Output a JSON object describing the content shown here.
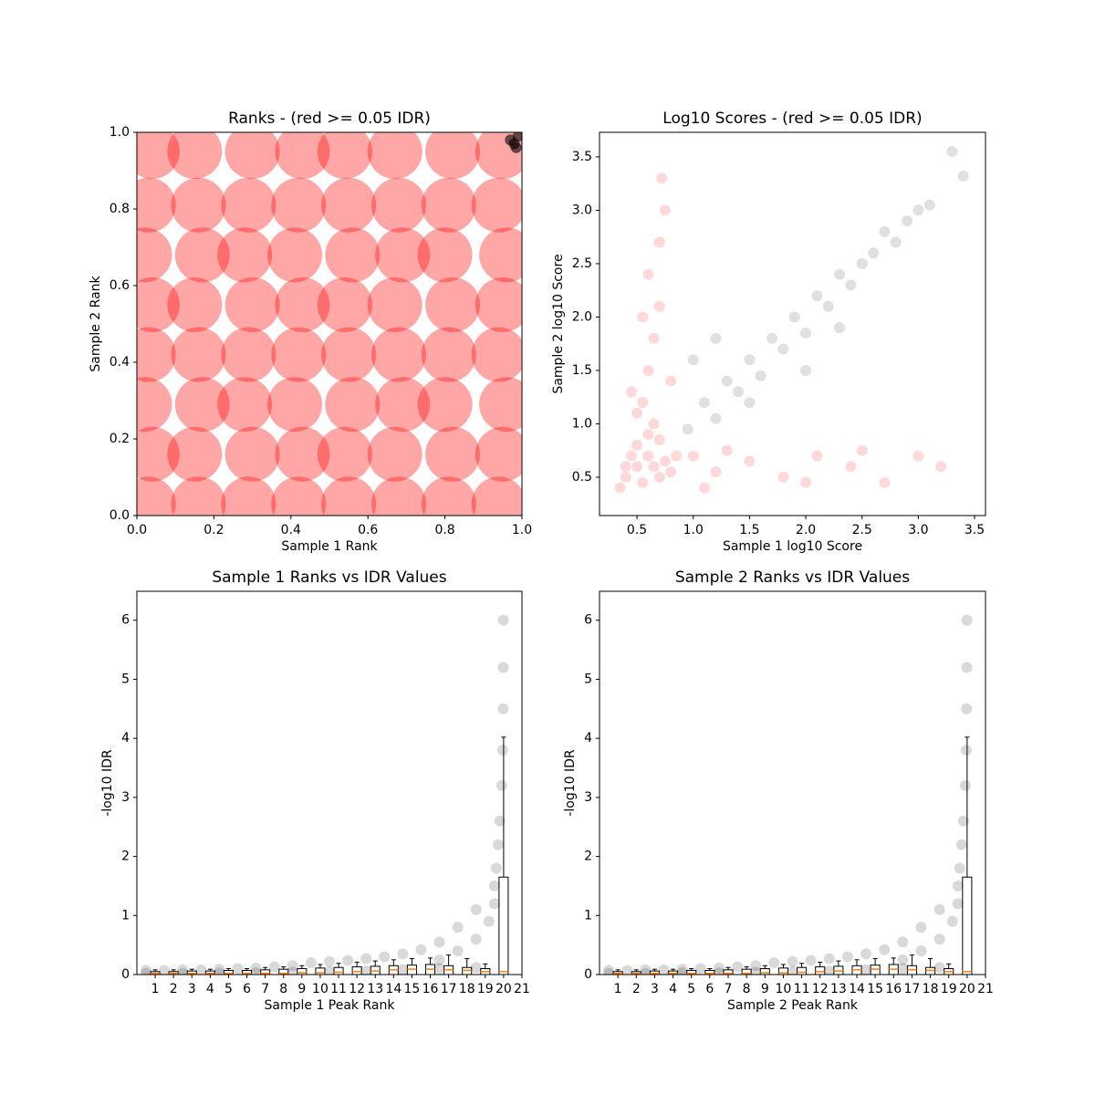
{
  "chart_data": [
    {
      "type": "scatter",
      "title": "Ranks - (red >= 0.05 IDR)",
      "xlabel": "Sample 1 Rank",
      "ylabel": "Sample 2 Rank",
      "xlim": [
        0,
        1
      ],
      "ylim": [
        0,
        1
      ],
      "xticks": [
        {
          "value": 0,
          "label": "0.0"
        },
        0.2,
        0.4,
        0.6,
        0.8,
        {
          "value": 1,
          "label": "1.0"
        }
      ],
      "yticks": [
        {
          "value": 0,
          "label": "0.0"
        },
        0.2,
        0.4,
        0.6,
        0.8,
        {
          "value": 1,
          "label": "1.0"
        }
      ],
      "series": [
        {
          "color": "#ff0000",
          "alpha": 0.35,
          "x": [
            0.03,
            0.16,
            0.29,
            0.42,
            0.55,
            0.68,
            0.81,
            0.94,
            0.04,
            0.15,
            0.3,
            0.43,
            0.54,
            0.67,
            0.82,
            0.95,
            0.02,
            0.17,
            0.28,
            0.41,
            0.56,
            0.69,
            0.8,
            0.96,
            0.03,
            0.16,
            0.29,
            0.42,
            0.55,
            0.68,
            0.81,
            0.94,
            0.04,
            0.15,
            0.3,
            0.43,
            0.54,
            0.67,
            0.82,
            0.95,
            0.02,
            0.17,
            0.28,
            0.41,
            0.56,
            0.69,
            0.8,
            0.96,
            0.03,
            0.16,
            0.29,
            0.42,
            0.55,
            0.68,
            0.81,
            0.94,
            0.04,
            0.15,
            0.3,
            0.43,
            0.54,
            0.67,
            0.82,
            0.95
          ],
          "y": [
            0.03,
            0.03,
            0.03,
            0.03,
            0.03,
            0.03,
            0.03,
            0.03,
            0.16,
            0.16,
            0.16,
            0.16,
            0.16,
            0.16,
            0.16,
            0.16,
            0.29,
            0.29,
            0.29,
            0.29,
            0.29,
            0.29,
            0.29,
            0.29,
            0.42,
            0.42,
            0.42,
            0.42,
            0.42,
            0.42,
            0.42,
            0.42,
            0.55,
            0.55,
            0.55,
            0.55,
            0.55,
            0.55,
            0.55,
            0.55,
            0.68,
            0.68,
            0.68,
            0.68,
            0.68,
            0.68,
            0.68,
            0.68,
            0.81,
            0.81,
            0.81,
            0.81,
            0.81,
            0.81,
            0.81,
            0.81,
            0.95,
            0.95,
            0.95,
            0.95,
            0.95,
            0.95,
            0.95,
            0.95
          ]
        },
        {
          "color": "#000000",
          "alpha": 0.6,
          "x": [
            0.97,
            0.98,
            0.99,
            0.985
          ],
          "y": [
            0.98,
            0.97,
            0.99,
            0.96
          ]
        }
      ]
    },
    {
      "type": "scatter",
      "title": "Log10 Scores - (red >= 0.05 IDR)",
      "xlabel": "Sample 1 log10 Score",
      "ylabel": "Sample 2 log10 Score",
      "xlim": [
        0.167,
        3.597
      ],
      "ylim": [
        0.141,
        3.73
      ],
      "xticks": [
        0.5,
        {
          "value": 1,
          "label": "1.0"
        },
        1.5,
        {
          "value": 2,
          "label": "2.0"
        },
        2.5,
        {
          "value": 3,
          "label": "3.0"
        },
        3.5
      ],
      "yticks": [
        0.5,
        {
          "value": 1,
          "label": "1.0"
        },
        1.5,
        {
          "value": 2,
          "label": "2.0"
        },
        2.5,
        {
          "value": 3,
          "label": "3.0"
        },
        3.5
      ],
      "series": [
        {
          "color": "#ff0000",
          "alpha": 0.15,
          "x": [
            0.4,
            0.5,
            0.6,
            0.7,
            0.55,
            0.65,
            0.45,
            0.75,
            0.35,
            0.8,
            0.6,
            0.5,
            0.7,
            0.85,
            0.4,
            0.55,
            0.6,
            0.65,
            0.7,
            0.6,
            0.7,
            0.75,
            0.72,
            0.55,
            0.65,
            0.5,
            0.45,
            0.8,
            1.2,
            1.5,
            1.8,
            2.1,
            2.4,
            2.7,
            3.0,
            3.2,
            2.0,
            1.0,
            1.1,
            1.3,
            2.5
          ],
          "y": [
            0.5,
            0.6,
            0.7,
            0.5,
            0.45,
            0.6,
            0.7,
            0.65,
            0.4,
            0.55,
            0.9,
            0.8,
            0.85,
            0.7,
            0.6,
            1.2,
            1.5,
            1.8,
            2.1,
            2.4,
            2.7,
            3.0,
            3.3,
            2.0,
            1.0,
            1.1,
            1.3,
            1.4,
            0.55,
            0.65,
            0.5,
            0.7,
            0.6,
            0.45,
            0.7,
            0.6,
            0.45,
            0.7,
            0.4,
            0.75,
            0.75
          ]
        },
        {
          "color": "#000000",
          "alpha": 0.12,
          "x": [
            0.95,
            1.1,
            1.2,
            1.3,
            1.4,
            1.5,
            1.6,
            1.7,
            1.8,
            1.9,
            2.0,
            2.1,
            2.2,
            2.3,
            2.4,
            2.5,
            2.6,
            2.7,
            2.8,
            2.9,
            3.0,
            3.1,
            3.3,
            3.4,
            1.0,
            2.0,
            1.5,
            2.3,
            1.2
          ],
          "y": [
            0.95,
            1.2,
            1.05,
            1.4,
            1.3,
            1.6,
            1.45,
            1.8,
            1.7,
            2.0,
            1.85,
            2.2,
            2.1,
            2.4,
            2.3,
            2.5,
            2.6,
            2.8,
            2.7,
            2.9,
            3.0,
            3.05,
            3.55,
            3.32,
            1.6,
            1.5,
            1.2,
            1.9,
            1.8
          ]
        }
      ]
    },
    {
      "type": "boxplot",
      "title": "Sample 1 Ranks vs IDR Values",
      "xlabel": "Sample 1 Peak Rank",
      "ylabel": "-log10 IDR",
      "xlim": [
        0,
        21
      ],
      "ylim": [
        0,
        6.49
      ],
      "xticks": [
        1,
        2,
        3,
        4,
        5,
        6,
        7,
        8,
        9,
        10,
        11,
        12,
        13,
        14,
        15,
        16,
        17,
        18,
        19,
        20,
        21
      ],
      "yticks": [
        0,
        1,
        2,
        3,
        4,
        5,
        6
      ],
      "series": [
        {
          "color": "#000000",
          "alpha": 0.15,
          "x": [
            0.5,
            1.5,
            2.5,
            3.5,
            4.5,
            5.5,
            6.5,
            7.5,
            8.5,
            9.5,
            10.5,
            11.5,
            12.5,
            13.5,
            14.5,
            15.5,
            16.5,
            17.5,
            18.5,
            19.5,
            0.5,
            2.5,
            4.5,
            6.5,
            8.5,
            10.5,
            12.5,
            14.5,
            16.5,
            18.5,
            19.6,
            19.7,
            19.8,
            19.9,
            19.95,
            19.97,
            19.98,
            19.99,
            17.5,
            18.5,
            19.2,
            19.5,
            16.5
          ],
          "y": [
            0.07,
            0.07,
            0.08,
            0.08,
            0.09,
            0.1,
            0.11,
            0.13,
            0.15,
            0.2,
            0.22,
            0.24,
            0.27,
            0.3,
            0.35,
            0.42,
            0.55,
            0.8,
            1.1,
            1.5,
            0.02,
            0.02,
            0.03,
            0.03,
            0.04,
            0.05,
            0.06,
            0.08,
            0.1,
            0.12,
            1.8,
            2.2,
            2.6,
            3.2,
            3.8,
            4.5,
            5.2,
            6.0,
            0.4,
            0.6,
            0.9,
            1.2,
            0.25
          ]
        }
      ],
      "box": {
        "color": "#000000",
        "median_color": "#ff7f0e",
        "positions": [
          1,
          2,
          3,
          4,
          5,
          6,
          7,
          8,
          9,
          10,
          11,
          12,
          13,
          14,
          15,
          16,
          17,
          18,
          19,
          20
        ],
        "low": [
          0,
          0,
          0,
          0,
          0,
          0,
          0,
          0,
          0,
          0,
          0,
          0,
          0,
          0,
          0,
          0,
          0,
          0,
          0,
          0
        ],
        "q1": [
          0,
          0,
          0,
          0,
          0,
          0,
          0,
          0,
          0,
          0,
          0,
          0,
          0,
          0,
          0,
          0,
          0,
          0,
          0,
          0
        ],
        "median": [
          0.02,
          0.02,
          0.02,
          0.02,
          0.02,
          0.02,
          0.02,
          0.02,
          0.03,
          0.03,
          0.04,
          0.05,
          0.06,
          0.08,
          0.09,
          0.09,
          0.08,
          0.07,
          0.05,
          0.05
        ],
        "q3": [
          0.05,
          0.05,
          0.06,
          0.06,
          0.07,
          0.07,
          0.08,
          0.09,
          0.1,
          0.11,
          0.12,
          0.13,
          0.14,
          0.15,
          0.16,
          0.17,
          0.15,
          0.12,
          0.1,
          1.65
        ],
        "high": [
          0.08,
          0.08,
          0.09,
          0.09,
          0.1,
          0.1,
          0.12,
          0.13,
          0.15,
          0.17,
          0.19,
          0.21,
          0.23,
          0.25,
          0.27,
          0.28,
          0.33,
          0.27,
          0.18,
          4.02
        ]
      }
    },
    {
      "type": "boxplot",
      "title": "Sample 2 Ranks vs IDR Values",
      "xlabel": "Sample 2 Peak Rank",
      "ylabel": "-log10 IDR",
      "xlim": [
        0,
        21
      ],
      "ylim": [
        0,
        6.49
      ],
      "xticks": [
        1,
        2,
        3,
        4,
        5,
        6,
        7,
        8,
        9,
        10,
        11,
        12,
        13,
        14,
        15,
        16,
        17,
        18,
        19,
        20,
        21
      ],
      "yticks": [
        0,
        1,
        2,
        3,
        4,
        5,
        6
      ],
      "series": [
        {
          "color": "#000000",
          "alpha": 0.15,
          "x": [
            0.5,
            1.5,
            2.5,
            3.5,
            4.5,
            5.5,
            6.5,
            7.5,
            8.5,
            9.5,
            10.5,
            11.5,
            12.5,
            13.5,
            14.5,
            15.5,
            16.5,
            17.5,
            18.5,
            19.5,
            0.5,
            2.5,
            4.5,
            6.5,
            8.5,
            10.5,
            12.5,
            14.5,
            16.5,
            18.5,
            19.6,
            19.7,
            19.8,
            19.9,
            19.95,
            19.97,
            19.98,
            19.99,
            17.5,
            18.5,
            19.2,
            19.5,
            16.5
          ],
          "y": [
            0.07,
            0.07,
            0.08,
            0.08,
            0.09,
            0.1,
            0.11,
            0.13,
            0.15,
            0.2,
            0.22,
            0.24,
            0.27,
            0.3,
            0.35,
            0.42,
            0.55,
            0.8,
            1.1,
            1.5,
            0.02,
            0.02,
            0.03,
            0.03,
            0.04,
            0.05,
            0.06,
            0.08,
            0.1,
            0.12,
            1.8,
            2.2,
            2.6,
            3.2,
            3.8,
            4.5,
            5.2,
            6.0,
            0.4,
            0.6,
            0.9,
            1.2,
            0.25
          ]
        }
      ],
      "box": {
        "color": "#000000",
        "median_color": "#ff7f0e",
        "positions": [
          1,
          2,
          3,
          4,
          5,
          6,
          7,
          8,
          9,
          10,
          11,
          12,
          13,
          14,
          15,
          16,
          17,
          18,
          19,
          20
        ],
        "low": [
          0,
          0,
          0,
          0,
          0,
          0,
          0,
          0,
          0,
          0,
          0,
          0,
          0,
          0,
          0,
          0,
          0,
          0,
          0,
          0
        ],
        "q1": [
          0,
          0,
          0,
          0,
          0,
          0,
          0,
          0,
          0,
          0,
          0,
          0,
          0,
          0,
          0,
          0,
          0,
          0,
          0,
          0
        ],
        "median": [
          0.02,
          0.02,
          0.02,
          0.02,
          0.02,
          0.02,
          0.02,
          0.02,
          0.03,
          0.03,
          0.04,
          0.05,
          0.06,
          0.08,
          0.09,
          0.09,
          0.08,
          0.07,
          0.05,
          0.05
        ],
        "q3": [
          0.05,
          0.05,
          0.06,
          0.06,
          0.07,
          0.07,
          0.08,
          0.09,
          0.1,
          0.11,
          0.12,
          0.13,
          0.14,
          0.15,
          0.16,
          0.17,
          0.15,
          0.12,
          0.1,
          1.65
        ],
        "high": [
          0.08,
          0.08,
          0.09,
          0.09,
          0.1,
          0.1,
          0.12,
          0.13,
          0.15,
          0.17,
          0.19,
          0.21,
          0.23,
          0.25,
          0.27,
          0.28,
          0.33,
          0.27,
          0.18,
          4.02
        ]
      }
    }
  ]
}
